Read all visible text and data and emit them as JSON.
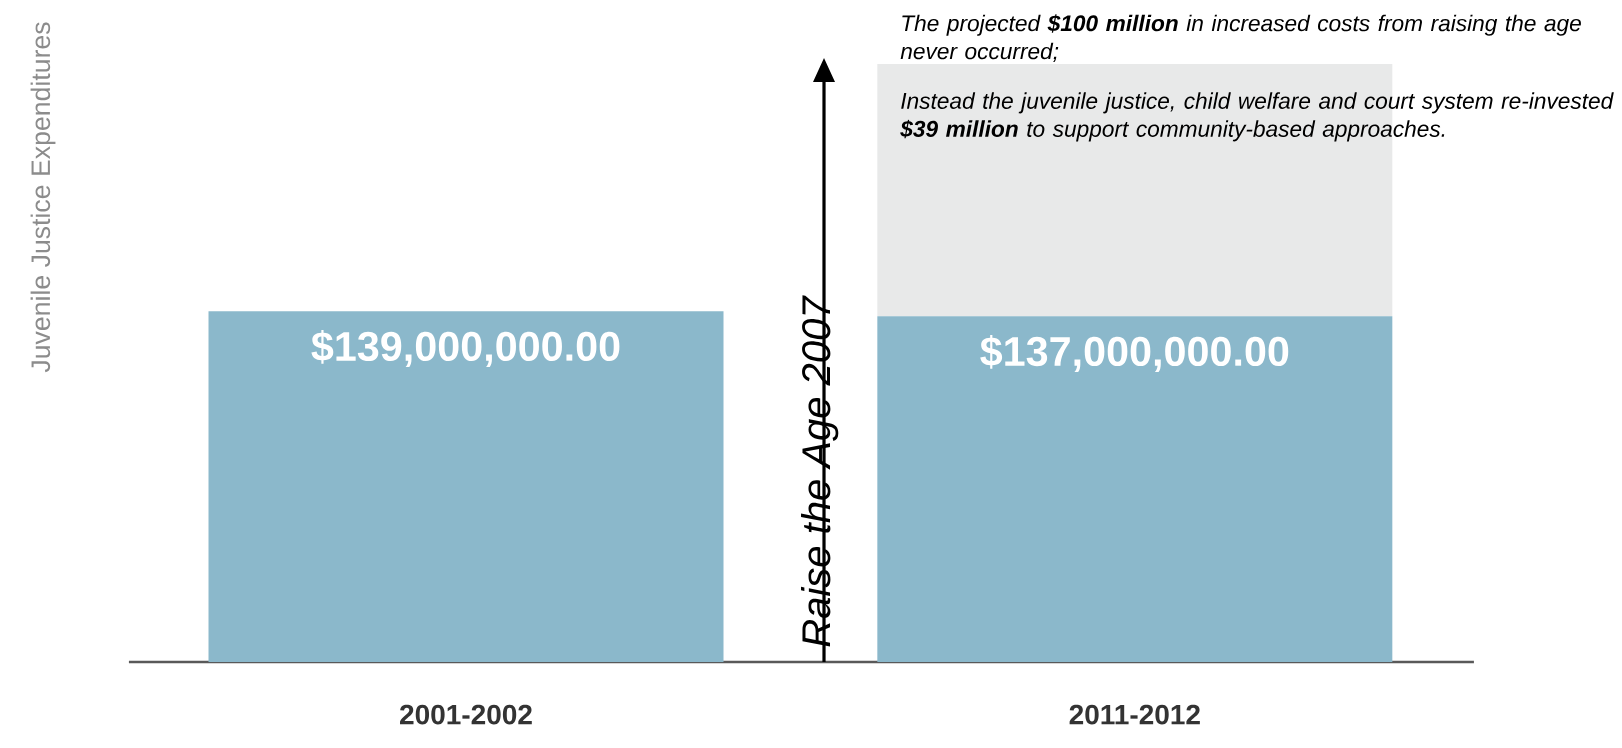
{
  "chart_data": {
    "type": "bar",
    "stacked": true,
    "ylabel": "Juvenile Justice Expenditures",
    "categories": [
      "2001-2002",
      "2011-2012"
    ],
    "series": [
      {
        "color": "#8bb8cb",
        "values": [
          139000000,
          137000000
        ],
        "value_labels": [
          "$139,000,000.00",
          "$137,000,000.00"
        ]
      },
      {
        "color": "#e8e9e9",
        "values": [
          null,
          100000000
        ]
      }
    ],
    "tick_labels": "x",
    "annotations": [
      "Raise the Age 2007",
      "The projected **$100 million** in increased costs from raising the age never occurred;",
      "Instead the juvenile justice, child welfare and court system re-invested **$39 million** to support community-based approaches."
    ]
  }
}
